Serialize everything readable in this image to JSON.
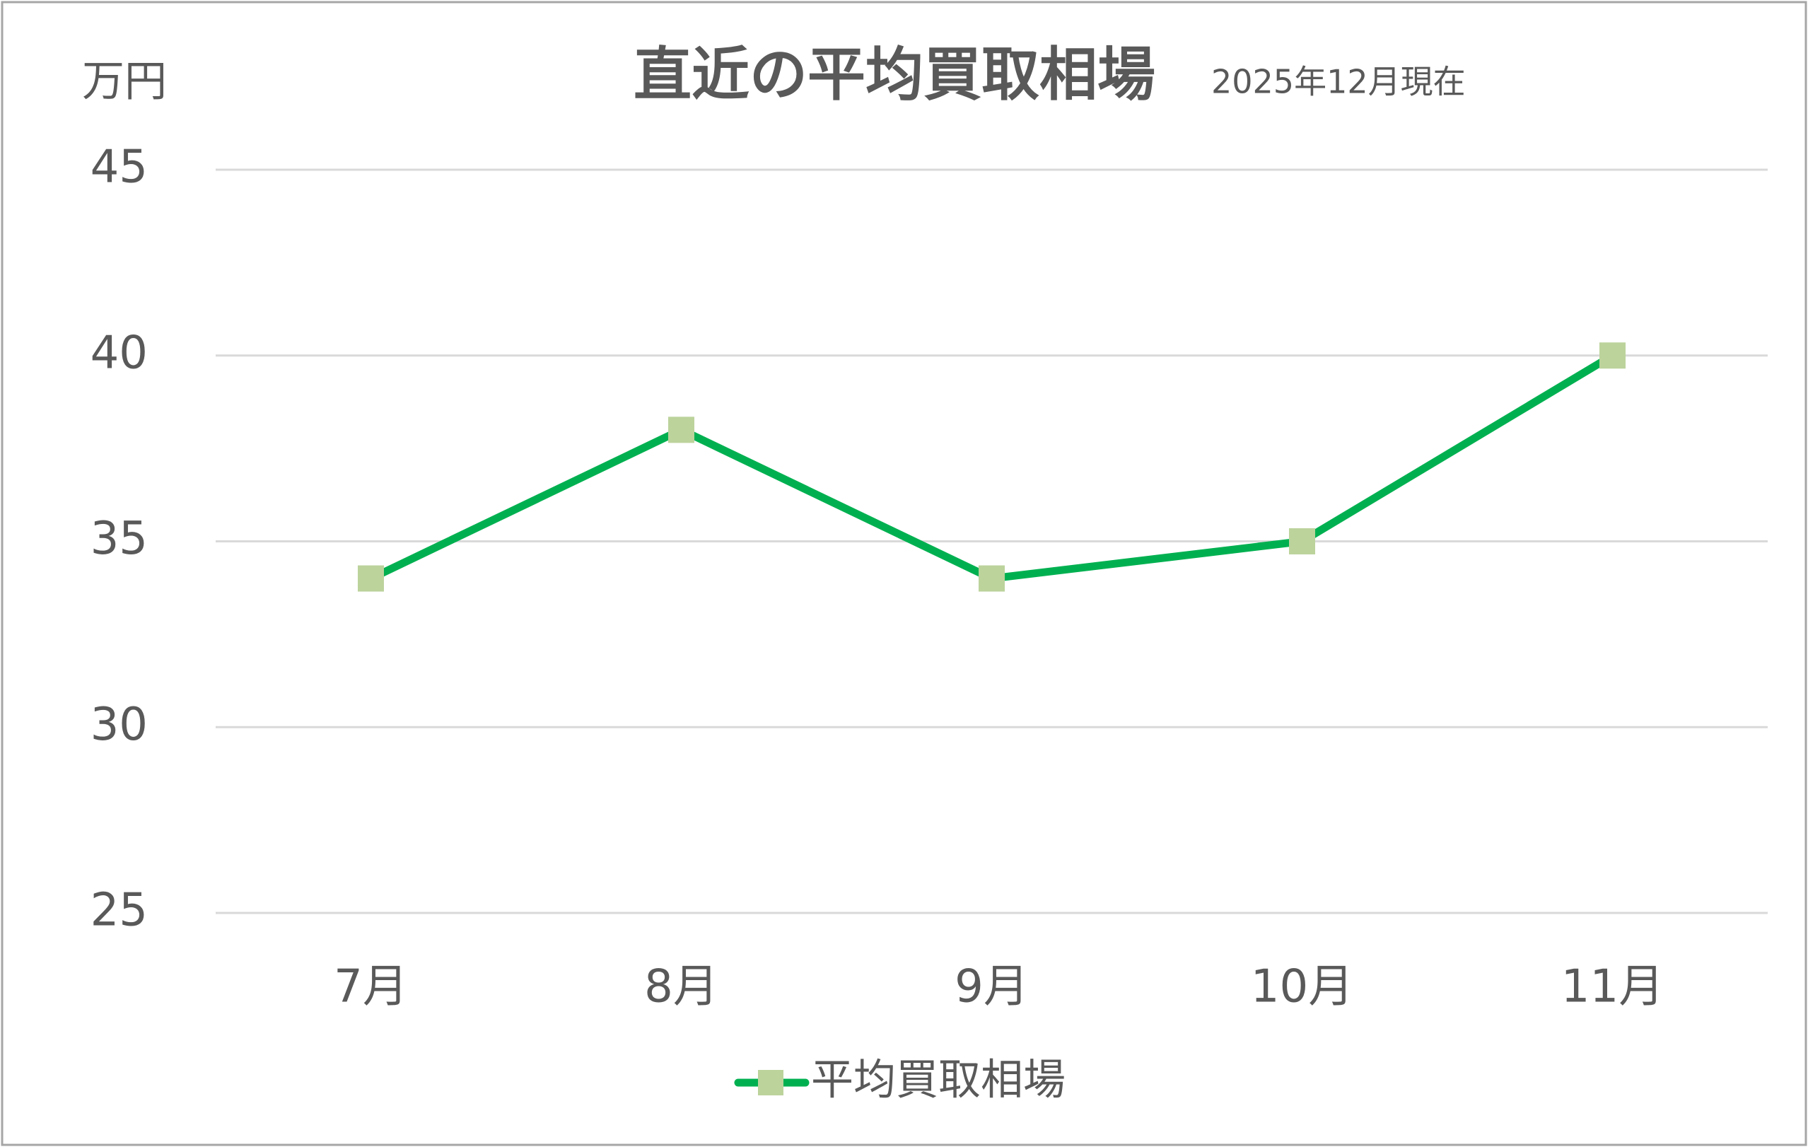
{
  "chart_data": {
    "type": "line",
    "title": "直近の平均買取相場",
    "subtitle": "2025年12月現在",
    "y_label": "万円",
    "categories": [
      "7月",
      "8月",
      "9月",
      "10月",
      "11月"
    ],
    "series": [
      {
        "name": "平均買取相場",
        "color": "#00b050",
        "marker_color": "#bcd39c",
        "values": [
          34,
          38,
          34,
          35,
          40
        ]
      }
    ],
    "ylim": [
      25,
      45
    ],
    "yticks": [
      25,
      30,
      35,
      40,
      45
    ],
    "grid": true,
    "legend": "bottom"
  }
}
